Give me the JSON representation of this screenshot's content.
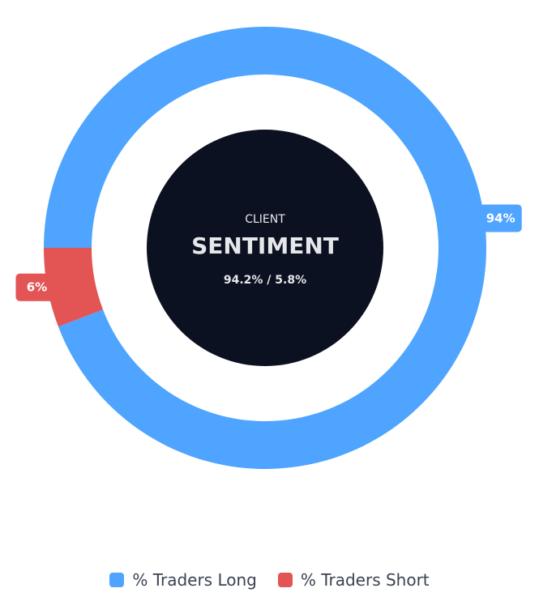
{
  "chart_data": {
    "type": "pie",
    "style": "donut",
    "categories": [
      "% Traders Long",
      "% Traders Short"
    ],
    "values": [
      94.2,
      5.8
    ],
    "data_labels": [
      "94%",
      "6%"
    ],
    "colors": [
      "#4ea4ff",
      "#e35454"
    ],
    "center": {
      "small_title": "CLIENT",
      "big_title": "SENTIMENT",
      "ratio_text": "94.2% / 5.8%"
    },
    "legend_placement": "bottom"
  },
  "colors": {
    "center_fill": "#0b1120",
    "center_text": "#e5e7eb"
  }
}
